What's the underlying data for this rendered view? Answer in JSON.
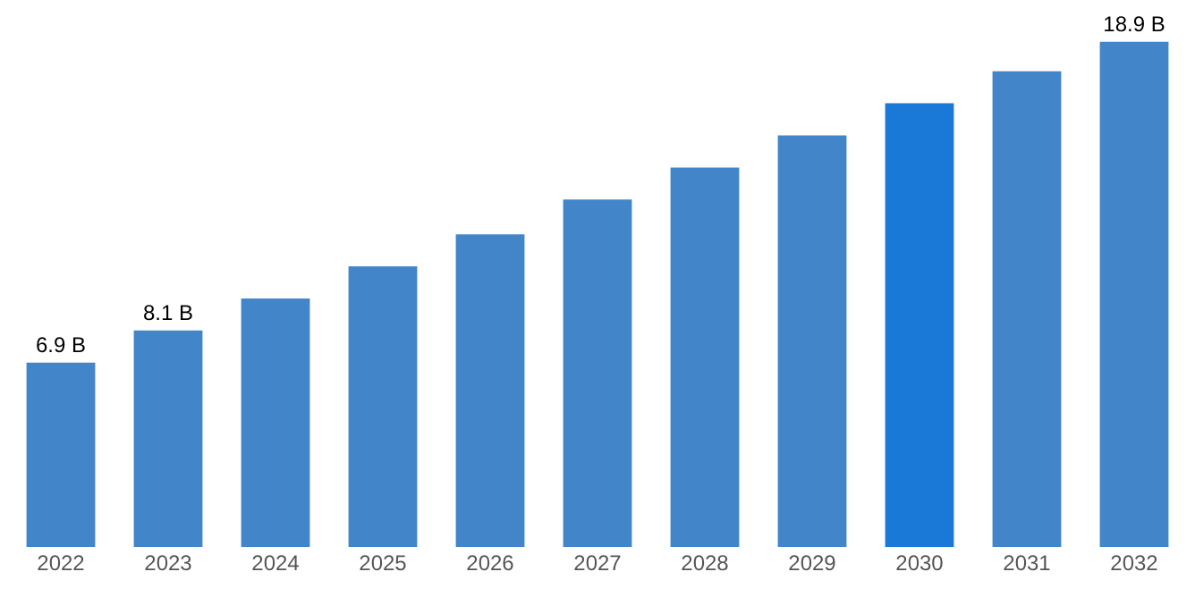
{
  "chart_data": {
    "type": "bar",
    "categories": [
      "2022",
      "2023",
      "2024",
      "2025",
      "2026",
      "2027",
      "2028",
      "2029",
      "2030",
      "2031",
      "2032"
    ],
    "values": [
      6.9,
      8.1,
      9.3,
      10.5,
      11.7,
      13.0,
      14.2,
      15.4,
      16.6,
      17.8,
      18.9
    ],
    "value_labels": [
      "6.9 B",
      "8.1 B",
      null,
      null,
      null,
      null,
      null,
      null,
      null,
      null,
      "18.9 B"
    ],
    "colors": [
      "#4285c8",
      "#4285c8",
      "#4285c8",
      "#4285c8",
      "#4285c8",
      "#4285c8",
      "#4285c8",
      "#4285c8",
      "#1a78d6",
      "#4285c8",
      "#4285c8"
    ],
    "legend": false
  }
}
